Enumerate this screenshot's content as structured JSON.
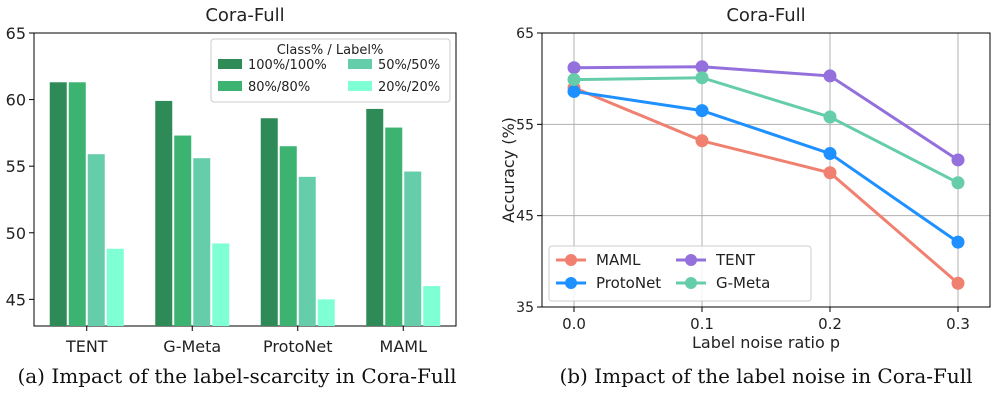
{
  "chart_data": [
    {
      "type": "bar",
      "title": "Cora-Full",
      "categories": [
        "TENT",
        "G-Meta",
        "ProtoNet",
        "MAML"
      ],
      "series": [
        {
          "name": "100%/100%",
          "values": [
            61.3,
            59.9,
            58.6,
            59.3
          ],
          "color": "#2e8b57"
        },
        {
          "name": "80%/80%",
          "values": [
            61.3,
            57.3,
            56.5,
            57.9
          ],
          "color": "#3cb371"
        },
        {
          "name": "50%/50%",
          "values": [
            55.9,
            55.6,
            54.2,
            54.6
          ],
          "color": "#66cdaa"
        },
        {
          "name": "20%/20%",
          "values": [
            48.8,
            49.2,
            45.0,
            46.0
          ],
          "color": "#7fffd4"
        }
      ],
      "legend_title": "Class% / Label%",
      "legend_position": "top-right",
      "ylim": [
        43,
        65
      ],
      "yticks": [
        45,
        50,
        55,
        60,
        65
      ],
      "xlabel": "",
      "ylabel": "",
      "caption": "(a) Impact of the label-scarcity in Cora-Full"
    },
    {
      "type": "line",
      "title": "Cora-Full",
      "x": [
        0.0,
        0.1,
        0.2,
        0.3
      ],
      "xticks": [
        "0.0",
        "0.1",
        "0.2",
        "0.3"
      ],
      "series": [
        {
          "name": "MAML",
          "values": [
            59.0,
            53.2,
            49.7,
            37.6
          ],
          "color": "#f08070"
        },
        {
          "name": "ProtoNet",
          "values": [
            58.6,
            56.5,
            51.8,
            42.1
          ],
          "color": "#1e90ff"
        },
        {
          "name": "TENT",
          "values": [
            61.2,
            61.3,
            60.3,
            51.1
          ],
          "color": "#9370db"
        },
        {
          "name": "G-Meta",
          "values": [
            59.9,
            60.1,
            55.8,
            48.6
          ],
          "color": "#66cdaa"
        }
      ],
      "legend_position": "bottom-left",
      "xlim": [
        -0.025,
        0.325
      ],
      "ylim": [
        35,
        65
      ],
      "yticks": [
        35,
        45,
        55,
        65
      ],
      "grid": true,
      "xlabel": "Label noise ratio p",
      "ylabel": "Accuracy (%)",
      "caption": "(b) Impact of the label noise in Cora-Full"
    }
  ]
}
